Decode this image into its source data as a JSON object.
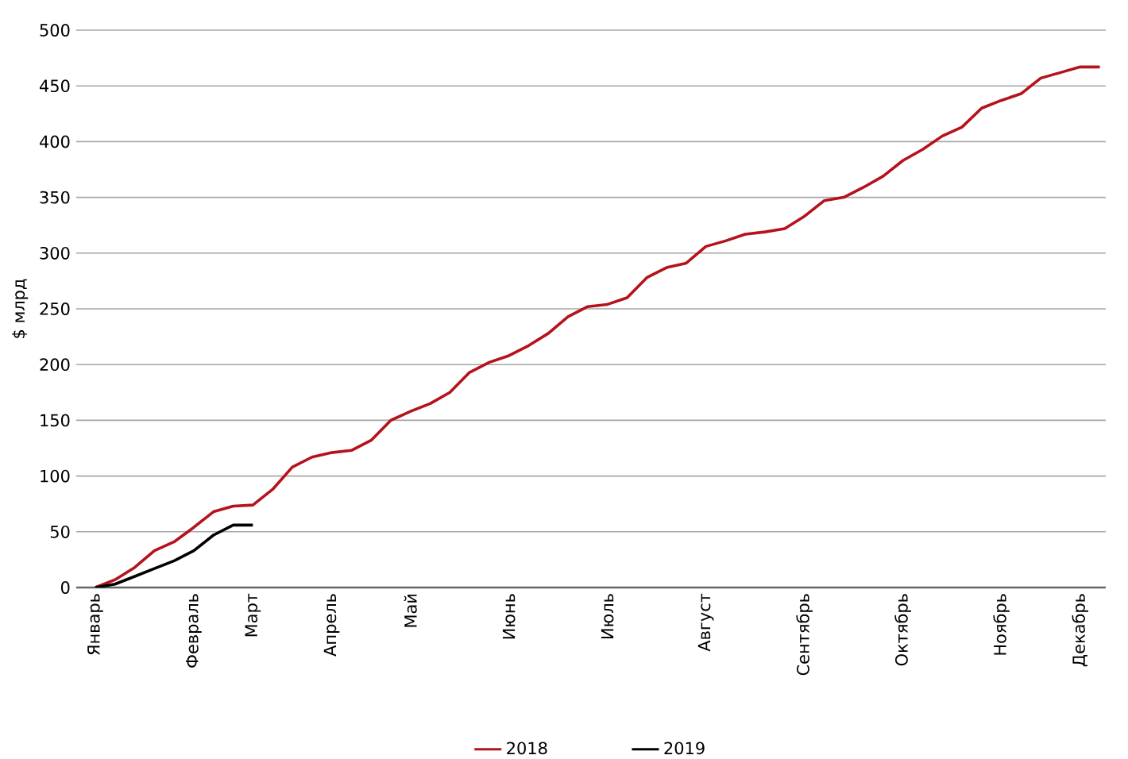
{
  "chart_data": {
    "type": "line",
    "ylabel": "$ млрд",
    "categories": [
      "Январь",
      null,
      null,
      null,
      null,
      "Февраль",
      null,
      null,
      "Март",
      null,
      null,
      null,
      "Апрель",
      null,
      null,
      null,
      "Май",
      null,
      null,
      null,
      null,
      "Июнь",
      null,
      null,
      null,
      null,
      "Июль",
      null,
      null,
      null,
      null,
      "Август",
      null,
      null,
      null,
      null,
      "Сентябрь",
      null,
      null,
      null,
      null,
      "Октябрь",
      null,
      null,
      null,
      null,
      "Ноябрь",
      null,
      null,
      null,
      "Декабрь",
      null
    ],
    "series": [
      {
        "name": "2018",
        "color": "#b5121b",
        "values": [
          0,
          7,
          18,
          33,
          41,
          54,
          68,
          73,
          74,
          88,
          108,
          117,
          121,
          123,
          132,
          150,
          158,
          165,
          175,
          193,
          202,
          208,
          217,
          228,
          243,
          252,
          254,
          260,
          278,
          287,
          291,
          306,
          311,
          317,
          319,
          322,
          333,
          347,
          350,
          359,
          369,
          383,
          393,
          405,
          413,
          430,
          437,
          443,
          457,
          462,
          467,
          467
        ]
      },
      {
        "name": "2019",
        "color": "#000000",
        "values": [
          0,
          3,
          10,
          17,
          24,
          33,
          47,
          56,
          56,
          null,
          null,
          null,
          null,
          null,
          null,
          null,
          null,
          null,
          null,
          null,
          null,
          null,
          null,
          null,
          null,
          null,
          null,
          null,
          null,
          null,
          null,
          null,
          null,
          null,
          null,
          null,
          null,
          null,
          null,
          null,
          null,
          null,
          null,
          null,
          null,
          null,
          null,
          null,
          null,
          null,
          null,
          null
        ]
      }
    ],
    "ylim": [
      0,
      500
    ],
    "yticks": [
      0,
      50,
      100,
      150,
      200,
      250,
      300,
      350,
      400,
      450,
      500
    ],
    "grid": "y",
    "legend": "bottom",
    "marker": "none",
    "line_style": "solid"
  }
}
